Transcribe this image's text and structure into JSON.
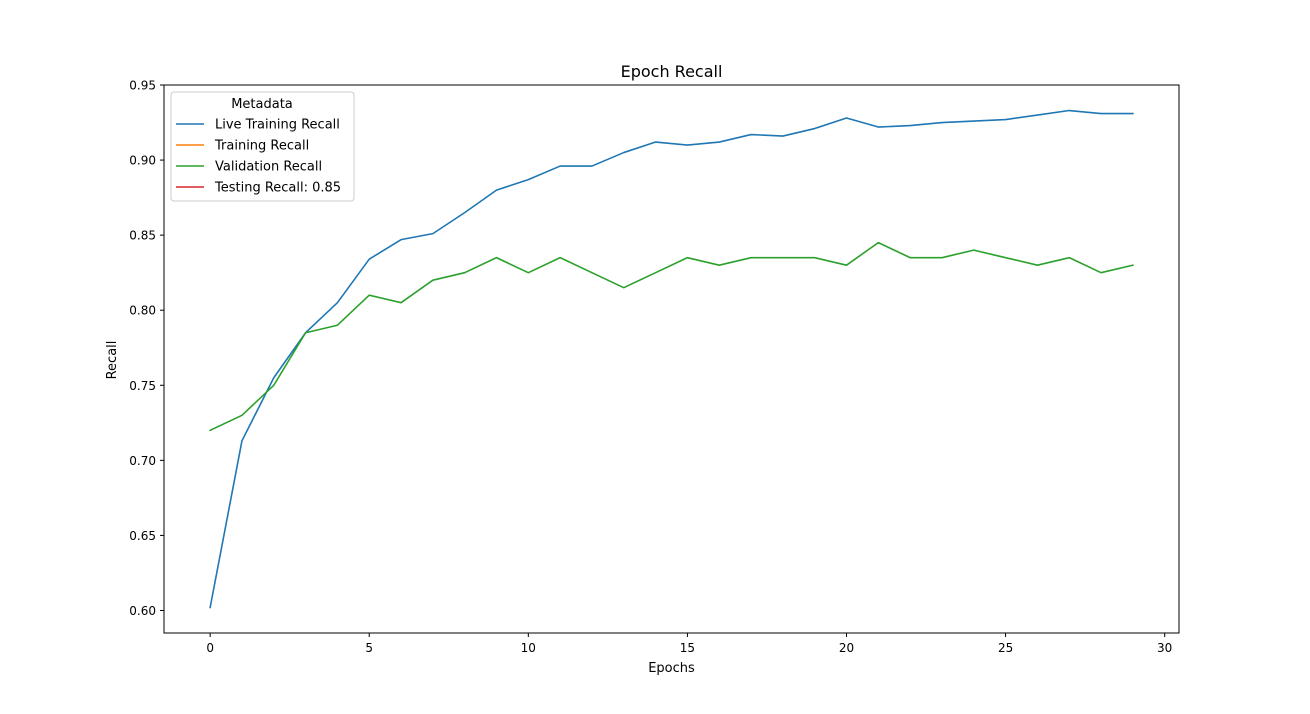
{
  "chart_data": {
    "type": "line",
    "title": "Epoch Recall",
    "xlabel": "Epochs",
    "ylabel": "Recall",
    "xlim": [
      -1.45,
      30.45
    ],
    "ylim": [
      0.585,
      0.95
    ],
    "xticks": [
      0,
      5,
      10,
      15,
      20,
      25,
      30
    ],
    "xtick_labels": [
      "0",
      "5",
      "10",
      "15",
      "20",
      "25",
      "30"
    ],
    "yticks": [
      0.6,
      0.65,
      0.7,
      0.75,
      0.8,
      0.85,
      0.9,
      0.95
    ],
    "ytick_labels": [
      "0.60",
      "0.65",
      "0.70",
      "0.75",
      "0.80",
      "0.85",
      "0.90",
      "0.95"
    ],
    "grid": false,
    "legend": {
      "title": "Metadata",
      "placement": "upper-left",
      "entries": [
        {
          "label": "Live Training Recall",
          "color": "#1f77b4"
        },
        {
          "label": "Training Recall",
          "color": "#ff7f0e"
        },
        {
          "label": "Validation Recall",
          "color": "#2ca02c"
        },
        {
          "label": "Testing Recall: 0.85",
          "color": "#d62728"
        }
      ]
    },
    "x": [
      0,
      1,
      2,
      3,
      4,
      5,
      6,
      7,
      8,
      9,
      10,
      11,
      12,
      13,
      14,
      15,
      16,
      17,
      18,
      19,
      20,
      21,
      22,
      23,
      24,
      25,
      26,
      27,
      28,
      29
    ],
    "series": [
      {
        "name": "Live Training Recall",
        "color": "#1f77b4",
        "values": [
          0.602,
          0.713,
          0.755,
          0.785,
          0.805,
          0.834,
          0.847,
          0.851,
          0.865,
          0.88,
          0.887,
          0.896,
          0.896,
          0.905,
          0.912,
          0.91,
          0.912,
          0.917,
          0.916,
          0.921,
          0.928,
          0.922,
          0.923,
          0.925,
          0.926,
          0.927,
          0.93,
          0.933,
          0.931,
          0.931
        ]
      },
      {
        "name": "Validation Recall",
        "color": "#2ca02c",
        "values": [
          0.72,
          0.73,
          0.75,
          0.785,
          0.79,
          0.81,
          0.805,
          0.82,
          0.825,
          0.835,
          0.825,
          0.835,
          0.825,
          0.815,
          0.825,
          0.835,
          0.83,
          0.835,
          0.835,
          0.835,
          0.83,
          0.845,
          0.835,
          0.835,
          0.84,
          0.835,
          0.83,
          0.835,
          0.825,
          0.83
        ]
      }
    ]
  }
}
